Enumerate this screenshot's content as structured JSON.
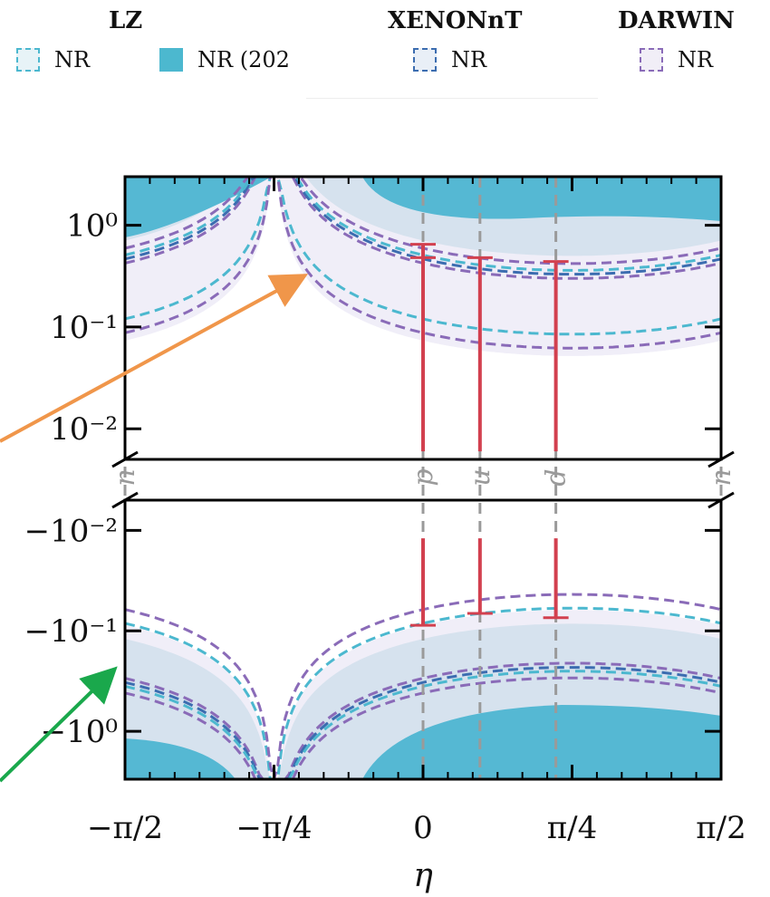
{
  "legend": {
    "groups": [
      {
        "title": "LZ",
        "items": [
          {
            "label": "NR",
            "style": "dashed",
            "color": "#4cb8cf",
            "fill": "#e7f3f7"
          },
          {
            "label": "NR (202",
            "style": "filled",
            "color": "#4cb8cf",
            "fill": "#4cb8cf"
          }
        ]
      },
      {
        "title": "XENONnT",
        "items": [
          {
            "label": "NR",
            "style": "dashed",
            "color": "#3c6db0",
            "fill": "#e9eff7"
          }
        ]
      },
      {
        "title": "DARWIN",
        "items": [
          {
            "label": "NR",
            "style": "dashed",
            "color": "#8a6bb8",
            "fill": "#f1eef7"
          }
        ]
      }
    ]
  },
  "colors": {
    "lz_filled": "#55b8d3",
    "lz_region": "#d6e2ee",
    "darwin_region": "#f0eef8",
    "lz_line": "#4cb8cf",
    "xenon_line": "#3c6db0",
    "darwin_line": "#8a6bb8",
    "error_bar": "#d2404f",
    "vertical_line": "#9a9a9a",
    "orange_arrow": "#f0964a",
    "green_arrow": "#1aa84c"
  },
  "chart_data": {
    "type": "line",
    "xlabel": "η",
    "xlim": [
      -1.5708,
      1.5708
    ],
    "x_ticks": [
      {
        "value": -1.5708,
        "label": "−π/2"
      },
      {
        "value": -0.7854,
        "label": "−π/4"
      },
      {
        "value": 0,
        "label": "0"
      },
      {
        "value": 0.7854,
        "label": "π/4"
      },
      {
        "value": 1.5708,
        "label": "π/2"
      }
    ],
    "y_scale": "symlog-broken",
    "ylim_upper": [
      0.005,
      3.0
    ],
    "ylim_lower": [
      -3.0,
      -0.005
    ],
    "y_ticks_upper": [
      {
        "value": 1,
        "label": "10⁰"
      },
      {
        "value": 0.1,
        "label": "10⁻¹"
      },
      {
        "value": 0.01,
        "label": "10⁻²"
      }
    ],
    "y_ticks_lower": [
      {
        "value": -0.01,
        "label": "−10⁻²"
      },
      {
        "value": -0.1,
        "label": "−10⁻¹"
      },
      {
        "value": -1,
        "label": "−10⁰"
      }
    ],
    "vertical_lines": [
      {
        "eta": -1.5708,
        "label": "n"
      },
      {
        "eta": 0,
        "label": "p"
      },
      {
        "eta": 0.3,
        "label": "u"
      },
      {
        "eta": 0.7,
        "label": "d"
      },
      {
        "eta": 1.5708,
        "label": "n"
      }
    ],
    "error_bars": [
      {
        "eta": 0,
        "upper": [
          0.006,
          0.65
        ],
        "upper_cap2": 0.48,
        "lower": [
          -0.012,
          -0.088
        ]
      },
      {
        "eta": 0.3,
        "upper": [
          0.006,
          0.48
        ],
        "lower": [
          -0.012,
          -0.067
        ]
      },
      {
        "eta": 0.7,
        "upper": [
          0.006,
          0.44
        ],
        "lower": [
          -0.012,
          -0.074
        ]
      }
    ],
    "series": [
      {
        "name": "LZ",
        "style": "dashed"
      },
      {
        "name": "XENONnT",
        "style": "dashed"
      },
      {
        "name": "DARWIN",
        "style": "dashed"
      }
    ],
    "grid": false
  }
}
